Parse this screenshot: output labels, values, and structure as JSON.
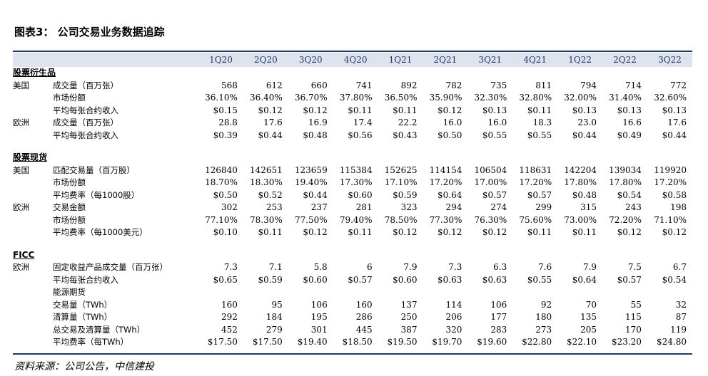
{
  "title": "图表3： 公司交易业务数据追踪",
  "source": "资料来源：公司公告，中信建投",
  "columns": [
    "1Q20",
    "2Q20",
    "3Q20",
    "4Q20",
    "1Q21",
    "2Q21",
    "3Q21",
    "4Q21",
    "1Q22",
    "2Q22",
    "3Q22"
  ],
  "sections": [
    {
      "name": "股票衍生品",
      "rows": [
        {
          "region": "美国",
          "metric": "成交量（百万张）",
          "values": [
            "568",
            "612",
            "660",
            "741",
            "892",
            "782",
            "735",
            "811",
            "794",
            "714",
            "772"
          ]
        },
        {
          "region": "",
          "metric": "市场份额",
          "values": [
            "36.10%",
            "36.40%",
            "36.70%",
            "37.80%",
            "36.50%",
            "35.90%",
            "32.30%",
            "32.80%",
            "32.00%",
            "31.40%",
            "32.60%"
          ]
        },
        {
          "region": "",
          "metric": "平均每张合约收入",
          "values": [
            "$0.15",
            "$0.12",
            "$0.12",
            "$0.11",
            "$0.11",
            "$0.12",
            "$0.13",
            "$0.11",
            "$0.13",
            "$0.13",
            "$0.13"
          ]
        },
        {
          "region": "欧洲",
          "metric": "成交量（百万张）",
          "values": [
            "28.8",
            "17.6",
            "16.9",
            "17.4",
            "22.2",
            "16.0",
            "16.0",
            "18.3",
            "23.0",
            "16.6",
            "17.6"
          ]
        },
        {
          "region": "",
          "metric": "平均每张合约收入",
          "values": [
            "$0.39",
            "$0.44",
            "$0.48",
            "$0.56",
            "$0.43",
            "$0.50",
            "$0.55",
            "$0.55",
            "$0.44",
            "$0.49",
            "$0.44"
          ]
        }
      ]
    },
    {
      "name": "股票现货",
      "rows": [
        {
          "region": "美国",
          "metric": "匹配交易量（百万股）",
          "values": [
            "126840",
            "142651",
            "123659",
            "115384",
            "152625",
            "114154",
            "106504",
            "118631",
            "142204",
            "139034",
            "119920"
          ]
        },
        {
          "region": "",
          "metric": "市场份额",
          "values": [
            "18.70%",
            "18.30%",
            "19.40%",
            "17.30%",
            "17.10%",
            "17.20%",
            "17.00%",
            "17.20%",
            "17.80%",
            "17.80%",
            "17.20%"
          ]
        },
        {
          "region": "",
          "metric": "平均费率（每1000股）",
          "values": [
            "$0.50",
            "$0.52",
            "$0.44",
            "$0.60",
            "$0.59",
            "$0.64",
            "$0.57",
            "$0.57",
            "$0.48",
            "$0.54",
            "$0.58"
          ]
        },
        {
          "region": "欧洲",
          "metric": "交易金额",
          "values": [
            "302",
            "253",
            "237",
            "281",
            "323",
            "294",
            "274",
            "299",
            "315",
            "243",
            "198"
          ]
        },
        {
          "region": "",
          "metric": "市场份额",
          "values": [
            "77.10%",
            "78.30%",
            "77.50%",
            "79.40%",
            "78.50%",
            "77.30%",
            "76.30%",
            "75.60%",
            "73.00%",
            "72.20%",
            "71.10%"
          ]
        },
        {
          "region": "",
          "metric": "平均费率（每1000美元）",
          "values": [
            "$0.10",
            "$0.11",
            "$0.12",
            "$0.11",
            "$0.12",
            "$0.12",
            "$0.12",
            "$0.11",
            "$0.11",
            "$0.12",
            "$0.12"
          ]
        }
      ]
    },
    {
      "name": "FICC",
      "rows": [
        {
          "region": "欧洲",
          "metric": "固定收益产品成交量（百万张）",
          "values": [
            "7.3",
            "7.1",
            "5.8",
            "6",
            "7.9",
            "7.3",
            "6.3",
            "7.6",
            "7.9",
            "7.5",
            "6.7"
          ]
        },
        {
          "region": "",
          "metric": "平均每张合约收入",
          "values": [
            "$0.65",
            "$0.59",
            "$0.60",
            "$0.57",
            "$0.60",
            "$0.63",
            "$0.63",
            "$0.55",
            "$0.64",
            "$0.57",
            "$0.54"
          ]
        },
        {
          "region": "",
          "metric": "能源期货",
          "values": [
            "",
            "",
            "",
            "",
            "",
            "",
            "",
            "",
            "",
            "",
            ""
          ]
        },
        {
          "region": "",
          "metric": "交易量（TWh）",
          "values": [
            "160",
            "95",
            "106",
            "160",
            "137",
            "114",
            "106",
            "92",
            "70",
            "55",
            "32"
          ]
        },
        {
          "region": "",
          "metric": "清算量（TWh）",
          "values": [
            "292",
            "184",
            "195",
            "286",
            "250",
            "206",
            "177",
            "180",
            "135",
            "115",
            "87"
          ]
        },
        {
          "region": "",
          "metric": "总交易及清算量（TWh）",
          "values": [
            "452",
            "279",
            "301",
            "445",
            "387",
            "320",
            "283",
            "273",
            "205",
            "170",
            "119"
          ]
        },
        {
          "region": "",
          "metric": "平均费率（每TWh）",
          "values": [
            "$17.50",
            "$17.50",
            "$19.40",
            "$18.50",
            "$19.50",
            "$19.70",
            "$19.60",
            "$22.80",
            "$22.10",
            "$23.20",
            "$24.80"
          ]
        }
      ]
    }
  ]
}
